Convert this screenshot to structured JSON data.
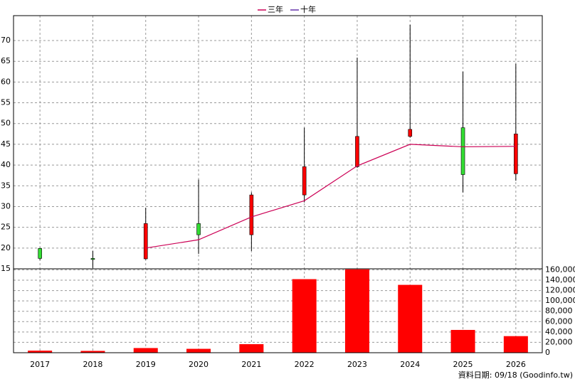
{
  "chart_data": {
    "type": "candlestick",
    "categories": [
      "2017",
      "2018",
      "2019",
      "2020",
      "2021",
      "2022",
      "2023",
      "2024",
      "2025",
      "2026"
    ],
    "candles": {
      "open": [
        19.9,
        17.5,
        17.4,
        25.9,
        23.2,
        32.8,
        39.6,
        46.9,
        49.0,
        37.9
      ],
      "high": [
        20.0,
        19.3,
        29.7,
        36.5,
        33.4,
        49.0,
        65.9,
        73.8,
        62.5,
        64.4
      ],
      "low": [
        17.1,
        15.2,
        17.2,
        18.6,
        19.3,
        31.0,
        39.3,
        46.6,
        33.4,
        36.2
      ],
      "close": [
        17.5,
        17.3,
        25.9,
        23.2,
        32.8,
        39.6,
        46.9,
        48.6,
        37.7,
        47.5
      ],
      "up_color": "#ff0000",
      "down_color": "#33dd33"
    },
    "series": [
      {
        "name": "三年",
        "color": "#cc0055",
        "values": [
          null,
          null,
          20.0,
          22.0,
          27.5,
          31.4,
          39.8,
          45.0,
          44.4,
          44.5
        ]
      },
      {
        "name": "十年",
        "color": "#6633aa",
        "values": [
          null,
          null,
          null,
          null,
          null,
          null,
          null,
          null,
          null,
          null
        ]
      }
    ],
    "volume": {
      "color": "#ff0000",
      "values": [
        4000,
        3500,
        9000,
        7500,
        16500,
        142000,
        161000,
        131000,
        44000,
        32000
      ]
    },
    "ylim": [
      15,
      76
    ],
    "yticks": [
      15,
      20,
      25,
      30,
      35,
      40,
      45,
      50,
      55,
      60,
      65,
      70
    ],
    "y2lim": [
      0,
      162000
    ],
    "y2ticks": [
      0,
      {
        "value": 20000,
        "label": "20,000"
      },
      {
        "value": 40000,
        "label": "40,000"
      },
      {
        "value": 60000,
        "label": "60,000"
      },
      {
        "value": 80000,
        "label": "80,000"
      },
      {
        "value": 100000,
        "label": "100,000"
      },
      {
        "value": 120000,
        "label": "120,000"
      },
      {
        "value": 140000,
        "label": "140,000"
      },
      {
        "value": 160000,
        "label": "160,000"
      }
    ],
    "grid": true,
    "footer": "資料日期: 09/18 (Goodinfo.tw)"
  }
}
